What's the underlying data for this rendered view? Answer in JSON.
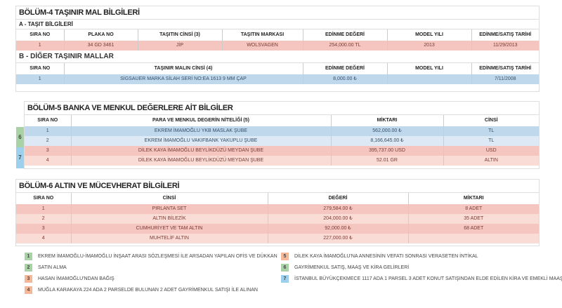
{
  "colors": {
    "green": "#a9d3a6",
    "blue": "#9dd0ec",
    "orange": "#f4b899",
    "pink": "#f4c6bf",
    "light_pink": "#fadcd7",
    "row_blue": "#bfd8ec",
    "light_blue": "#dde9f5"
  },
  "s4": {
    "title": "BÖLÜM-4 TAŞINIR MAL BİLGİLERİ",
    "a": {
      "title": "A - TAŞIT BİLGİLERİ",
      "headers": [
        "SIRA NO",
        "PLAKA NO",
        "TAŞITIN CİNSİ (3)",
        "TAŞITIN MARKASI",
        "EDİNME DEĞERİ",
        "MODEL YILI",
        "EDİNME/SATIŞ TARİHİ"
      ],
      "rows": [
        [
          "1",
          "34 GD 3461",
          "JİP",
          "WOLSVAGEN",
          "254,000.00 TL",
          "2013",
          "11/29/2013"
        ]
      ]
    },
    "b": {
      "title": "B - DİĞER TAŞINIR MALLAR",
      "headers": [
        "SIRA NO",
        "TAŞINIR MALIN CİNSİ (4)",
        "EDİNME DEĞERİ",
        "MODEL YILI",
        "EDİNME/SATIŞ TARİHİ"
      ],
      "rows": [
        [
          "1",
          "SİGSAUER MARKA SİLAH SERİ NO:EA 1613 9 MM ÇAP",
          "8,000.00 ₺",
          "",
          "7/11/2008"
        ]
      ]
    }
  },
  "s5": {
    "title": "BÖLÜM-5 BANKA VE MENKUL DEĞERLERE AİT BİLGİLER",
    "headers": [
      "SIRA NO",
      "PARA VE MENKUL DEGERİN NİTELİĞİ (5)",
      "MİKTARI",
      "CİNSİ"
    ],
    "markers": [
      "6",
      "7"
    ],
    "rows": [
      [
        "1",
        "EKREM İMAMOĞLU YKB MASLAK ŞUBE",
        "562,000.00 ₺",
        "TL"
      ],
      [
        "2",
        "EKREM İMAMOĞLU VAKIFBANK YAKUPLU ŞUBE",
        "8,166,645.00 ₺",
        "TL"
      ],
      [
        "3",
        "DİLEK KAYA İMAMOĞLU BEYLİKDÜZÜ MEYDAN ŞUBE",
        "395,737.00 USD",
        "USD"
      ],
      [
        "4",
        "DİLEK KAYA İMAMOĞLU BEYLİKDÜZÜ MEYDAN ŞUBE",
        "52.01 GR",
        "ALTIN"
      ]
    ]
  },
  "s6": {
    "title": "BÖLÜM-6 ALTIN VE MÜCEVHERAT BİLGİLERİ",
    "headers": [
      "SIRA NO",
      "CİNSİ",
      "DEĞERİ",
      "MİKTARI"
    ],
    "rows": [
      [
        "1",
        "PIRLANTA SET",
        "279,584.00 ₺",
        "8 ADET"
      ],
      [
        "2",
        "ALTIN BİLEZİK",
        "204,000.00 ₺",
        "35 ADET"
      ],
      [
        "3",
        "CUMHURİYET VE TAM ALTIN",
        "92,000.00 ₺",
        "68 ADET"
      ],
      [
        "4",
        "MUHTELİF ALTIN",
        "227,000.00 ₺",
        ""
      ]
    ]
  },
  "legend": [
    {
      "n": "1",
      "color": "green",
      "text": "EKREM İMAMOĞLU-İMAMOĞLU İNŞAAT ARASI SÖZLEŞMESİ İLE ARSADAN YAPILAN OFİS VE DÜKKAN"
    },
    {
      "n": "2",
      "color": "green",
      "text": "SATIN ALMA"
    },
    {
      "n": "3",
      "color": "orange",
      "text": "HASAN İMAMOĞLU'NDAN BAĞIŞ"
    },
    {
      "n": "4",
      "color": "orange",
      "text": "MUĞLA KARAKAYA 224 ADA 2 PARSELDE BULUNAN 2 ADET GAYRİMENKUL SATIŞI İLE ALINAN"
    },
    {
      "n": "5",
      "color": "orange",
      "text": "DİLEK KAYA İMAMOĞLU'NA ANNESİNİN VEFATI SONRASI VERASETEN İNTİKAL"
    },
    {
      "n": "6",
      "color": "green",
      "text": "GAYRİMENKUL SATIŞ, MAAŞ VE KİRA GELİRLERİ"
    },
    {
      "n": "7",
      "color": "blue",
      "text": "İSTANBUL BÜYÜKÇEKMECE 1117 ADA 1 PARSEL 3 ADET KONUT SATIŞINDAN ELDE EDİLEN KİRA VE EMEKLİ MAAŞI"
    }
  ]
}
